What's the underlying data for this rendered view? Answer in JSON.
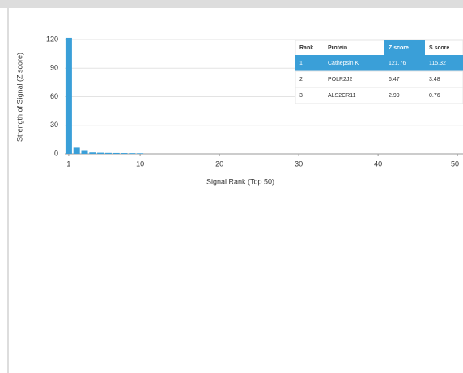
{
  "chart_data": {
    "type": "bar",
    "y_label": "Strength of Signal (Z score)",
    "x_label": "Signal Rank (Top 50)",
    "x": [
      1,
      2,
      3,
      4,
      5,
      6,
      7,
      8,
      9,
      10
    ],
    "values": [
      121.76,
      6.47,
      2.99,
      1.5,
      1.2,
      1,
      0.9,
      0.8,
      0.7,
      0.6
    ],
    "color": "#3a9fd8",
    "xlim": [
      0.5,
      50.7
    ],
    "ylim": [
      0,
      120
    ],
    "xticks": [
      1,
      10,
      20,
      30,
      40,
      50
    ],
    "yticks": [
      0,
      30,
      60,
      90,
      120
    ],
    "grid": true,
    "table": {
      "header": [
        "Rank",
        "Protein",
        "Z score",
        "S score"
      ],
      "rows": [
        [
          1,
          "Cathepsin K",
          121.76,
          115.32
        ],
        [
          2,
          "POLR2J2",
          6.47,
          3.48
        ],
        [
          3,
          "ALS2CR11",
          2.99,
          0.76
        ]
      ]
    }
  }
}
